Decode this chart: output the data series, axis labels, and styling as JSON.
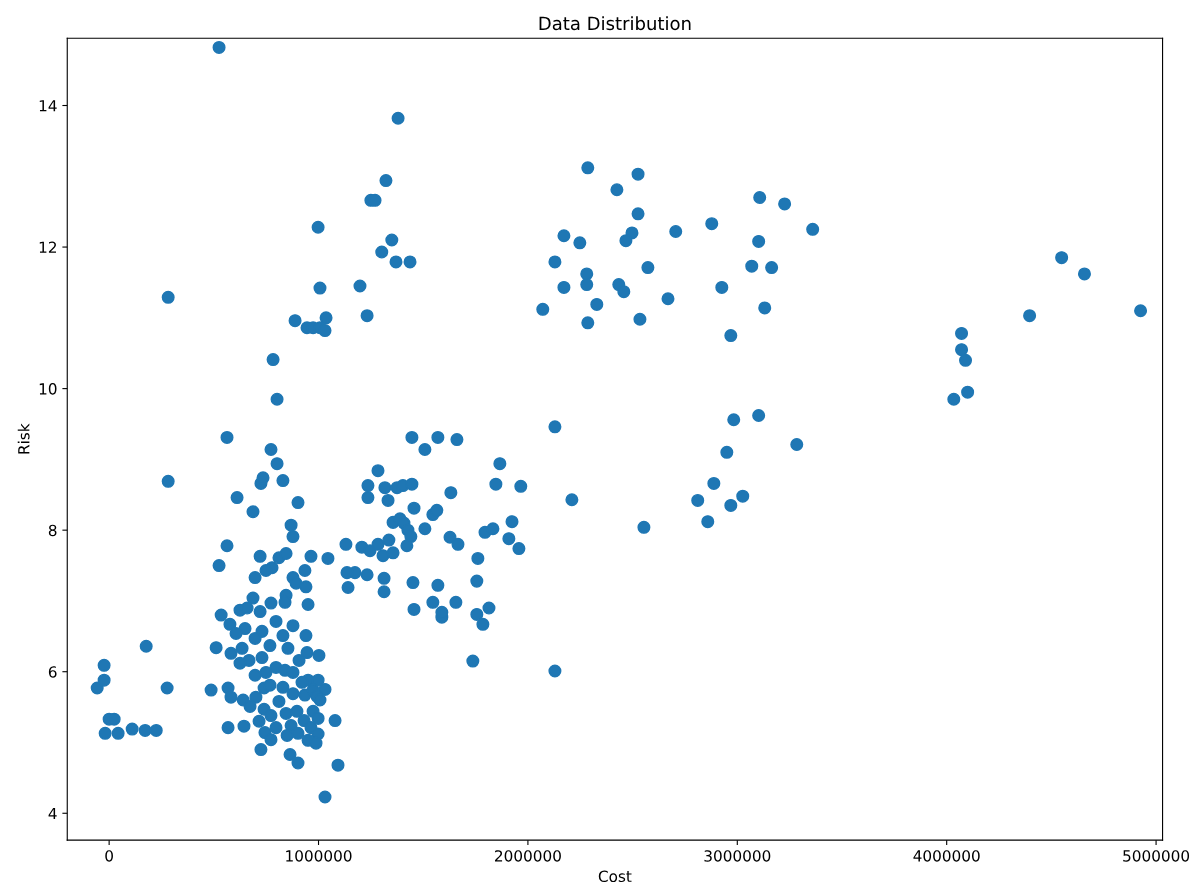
{
  "chart_data": {
    "type": "scatter",
    "title": "Data Distribution",
    "xlabel": "Cost",
    "ylabel": "Risk",
    "xlim": [
      -200000,
      5031000
    ],
    "ylim": [
      3.62,
      14.95
    ],
    "xticks": [
      0,
      1000000,
      2000000,
      3000000,
      4000000,
      5000000
    ],
    "yticks": [
      4,
      6,
      8,
      10,
      12,
      14
    ],
    "marker": "circle",
    "series": [
      {
        "color": "#1f77b4",
        "x": [
          525000,
          1380000,
          1322000,
          1250000,
          1270000,
          998000,
          1350000,
          1302000,
          1370000,
          1437000,
          1198000,
          1007000,
          1232000,
          1036000,
          888000,
          945000,
          974000,
          1007000,
          1031000,
          282000,
          783000,
          802000,
          563000,
          773000,
          802000,
          282000,
          830000,
          725000,
          735000,
          611000,
          902000,
          687000,
          869000,
          878000,
          563000,
          525000,
          721000,
          811000,
          845000,
          964000,
          1045000,
          778000,
          749000,
          935000,
          697000,
          878000,
          893000,
          940000,
          845000,
          773000,
          840000,
          950000,
          535000,
          687000,
          625000,
          659000,
          721000,
          577000,
          649000,
          730000,
          797000,
          878000,
          606000,
          697000,
          830000,
          940000,
          768000,
          511000,
          635000,
          854000,
          945000,
          582000,
          1002000,
          730000,
          907000,
          668000,
          625000,
          797000,
          840000,
          878000,
          749000,
          697000,
          950000,
          998000,
          921000,
          830000,
          740000,
          568000,
          768000,
          1031000,
          878000,
          935000,
          974000,
          993000,
          701000,
          640000,
          582000,
          487000,
          1007000,
          811000,
          673000,
          740000,
          845000,
          897000,
          974000,
          773000,
          931000,
          998000,
          716000,
          1079000,
          568000,
          644000,
          797000,
          869000,
          964000,
          744000,
          850000,
          902000,
          998000,
          773000,
          950000,
          988000,
          725000,
          864000,
          902000,
          1093000,
          1031000,
          -57000,
          -24000,
          -24000,
          177000,
          0,
          24000,
          -19000,
          43000,
          110000,
          172000,
          225000,
          277000,
          1131000,
          1174000,
          1136000,
          1141000,
          1236000,
          1236000,
          1207000,
          1246000,
          1232000,
          1284000,
          1284000,
          1308000,
          1317000,
          1332000,
          1313000,
          1313000,
          1356000,
          1336000,
          1356000,
          1375000,
          1403000,
          1446000,
          1389000,
          1408000,
          1427000,
          1441000,
          1422000,
          1446000,
          1456000,
          1451000,
          1456000,
          1508000,
          1508000,
          1570000,
          1546000,
          1565000,
          1546000,
          1570000,
          1589000,
          1589000,
          1628000,
          1632000,
          1661000,
          1666000,
          1656000,
          1737000,
          1756000,
          1761000,
          1756000,
          1785000,
          1814000,
          1795000,
          1833000,
          1847000,
          1866000,
          1909000,
          1924000,
          1957000,
          1966000,
          2129000,
          2129000,
          2210000,
          2286000,
          2425000,
          2526000,
          2172000,
          2248000,
          2526000,
          2497000,
          2468000,
          2706000,
          2878000,
          3107000,
          3226000,
          3360000,
          3102000,
          2129000,
          2281000,
          2281000,
          2172000,
          2329000,
          2071000,
          2434000,
          2458000,
          2573000,
          2669000,
          2535000,
          2286000,
          2926000,
          3069000,
          3164000,
          3131000,
          2969000,
          3284000,
          3102000,
          2983000,
          2950000,
          2888000,
          2811000,
          2859000,
          3026000,
          2969000,
          2554000,
          4034000,
          4071000,
          4071000,
          4090000,
          4100000,
          4396000,
          4549000,
          4658000,
          4926000
        ],
        "values": [
          14.82,
          13.82,
          12.94,
          12.66,
          12.66,
          12.28,
          12.1,
          11.93,
          11.79,
          11.79,
          11.45,
          11.42,
          11.03,
          11.0,
          10.96,
          10.86,
          10.86,
          10.86,
          10.82,
          11.29,
          10.41,
          9.85,
          9.31,
          9.14,
          8.94,
          8.69,
          8.7,
          8.66,
          8.74,
          8.46,
          8.39,
          8.26,
          8.07,
          7.91,
          7.78,
          7.5,
          7.63,
          7.61,
          7.67,
          7.63,
          7.6,
          7.47,
          7.43,
          7.43,
          7.33,
          7.33,
          7.25,
          7.2,
          7.08,
          6.97,
          6.98,
          6.95,
          6.8,
          7.04,
          6.87,
          6.9,
          6.85,
          6.67,
          6.61,
          6.57,
          6.71,
          6.65,
          6.54,
          6.47,
          6.51,
          6.51,
          6.37,
          6.34,
          6.33,
          6.33,
          6.27,
          6.26,
          6.23,
          6.2,
          6.16,
          6.16,
          6.12,
          6.06,
          6.02,
          5.99,
          5.99,
          5.95,
          5.88,
          5.88,
          5.85,
          5.78,
          5.77,
          5.77,
          5.81,
          5.75,
          5.69,
          5.67,
          5.74,
          5.65,
          5.64,
          5.6,
          5.64,
          5.74,
          5.6,
          5.58,
          5.51,
          5.47,
          5.41,
          5.44,
          5.44,
          5.38,
          5.31,
          5.34,
          5.3,
          5.31,
          5.21,
          5.23,
          5.21,
          5.24,
          5.21,
          5.14,
          5.1,
          5.13,
          5.12,
          5.04,
          5.03,
          4.99,
          4.9,
          4.83,
          4.71,
          4.68,
          4.23,
          5.77,
          5.88,
          6.09,
          6.36,
          5.33,
          5.33,
          5.13,
          5.13,
          5.19,
          5.17,
          5.17,
          5.77,
          7.8,
          7.4,
          7.4,
          7.19,
          8.63,
          8.46,
          7.76,
          7.71,
          7.37,
          8.84,
          7.8,
          7.64,
          8.6,
          8.42,
          7.32,
          7.13,
          8.11,
          7.86,
          7.68,
          8.6,
          8.63,
          8.65,
          8.16,
          8.1,
          8.0,
          7.91,
          7.78,
          9.31,
          8.31,
          7.26,
          6.88,
          9.14,
          8.02,
          9.31,
          8.22,
          8.28,
          6.98,
          7.22,
          6.77,
          6.84,
          7.9,
          8.53,
          9.28,
          7.8,
          6.98,
          6.15,
          7.28,
          7.6,
          6.81,
          6.67,
          6.9,
          7.97,
          8.02,
          8.65,
          8.94,
          7.88,
          8.12,
          7.74,
          8.62,
          9.46,
          6.01,
          8.43,
          13.12,
          12.81,
          13.03,
          12.16,
          12.06,
          12.47,
          12.2,
          12.09,
          12.22,
          12.33,
          12.7,
          12.61,
          12.25,
          12.08,
          11.79,
          11.62,
          11.47,
          11.43,
          11.19,
          11.12,
          11.47,
          11.37,
          11.71,
          11.27,
          10.98,
          10.93,
          11.43,
          11.73,
          11.71,
          11.14,
          10.75,
          9.21,
          9.62,
          9.56,
          9.1,
          8.66,
          8.42,
          8.12,
          8.48,
          8.35,
          8.04,
          9.85,
          10.78,
          10.55,
          10.4,
          9.95,
          11.03,
          11.85,
          11.62,
          11.1
        ]
      }
    ]
  }
}
